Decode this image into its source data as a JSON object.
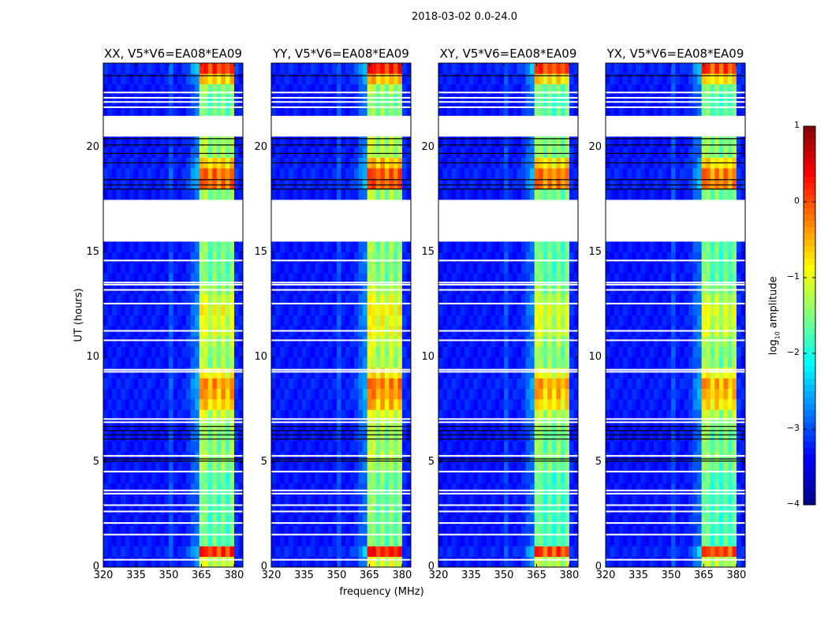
{
  "chart_data": {
    "type": "heatmap",
    "title": "2018-03-02 0.0-24.0",
    "xlabel": "frequency (MHz)",
    "ylabel": "UT (hours)",
    "xlim": [
      320,
      384
    ],
    "ylim": [
      0,
      24
    ],
    "xticks": [
      320,
      335,
      350,
      365,
      380
    ],
    "yticks": [
      0,
      5,
      10,
      15,
      20
    ],
    "colorbar": {
      "label": "log10 amplitude",
      "label_main": "log",
      "label_sub": "10",
      "label_rest": " amplitude",
      "range": [
        -4,
        1
      ],
      "ticks": [
        "1",
        "0",
        "−1",
        "−2",
        "−3",
        "−4"
      ],
      "colormap": "jet"
    },
    "freq_bin_MHz": 2,
    "time_bin_hours": 0.5,
    "column_profile": [
      -3.3,
      -3.3,
      -3.3,
      -3.3,
      -3.3,
      -3.3,
      -3.3,
      -3.3,
      -3.3,
      -3.3,
      -3.3,
      -3.3,
      -3.3,
      -3.3,
      -3.3,
      -3.0,
      -3.3,
      -3.3,
      -3.3,
      -3.2,
      -3.0,
      -2.9,
      -1.5,
      -1.5,
      -1.9,
      -1.5,
      -1.9,
      -1.5,
      -1.9,
      -1.5,
      -3.2,
      -3.3
    ],
    "band_weight": [
      0.05,
      0.05,
      0.05,
      0.05,
      0.05,
      0.05,
      0.05,
      0.05,
      0.05,
      0.05,
      0.05,
      0.05,
      0.05,
      0.05,
      0.05,
      0.05,
      0.05,
      0.05,
      0.1,
      0.1,
      0.2,
      0.3,
      1,
      1,
      1,
      1,
      1,
      1,
      1,
      1,
      0.05,
      0.05
    ],
    "row_gain": [
      0.5,
      1.8,
      0,
      0,
      0,
      0,
      0,
      0,
      0,
      0.2,
      0.3,
      0.2,
      0.2,
      0.3,
      0.5,
      1.0,
      1.2,
      1.3,
      0.8,
      0.3,
      0.3,
      0.4,
      0.6,
      0.6,
      0.7,
      0.5,
      0.3,
      0.1,
      0.1,
      0.1,
      0.1,
      null,
      null,
      null,
      null,
      0.2,
      1.5,
      1.5,
      1.0,
      0.3,
      0.3,
      null,
      null,
      0.1,
      0,
      0.2,
      1.0,
      1.8
    ],
    "flagged_lines_hours": [
      0.35,
      1.55,
      2.1,
      2.65,
      2.95,
      3.5,
      3.65,
      4.55,
      5.3,
      6.9,
      7.05,
      9.3,
      9.4,
      10.8,
      11.25,
      12.55,
      13.2,
      13.45,
      13.55,
      14.6,
      21.9,
      22.15,
      22.35,
      22.6
    ],
    "dark_lines_hours": [
      5.05,
      5.15,
      6.1,
      6.3,
      6.5,
      6.7,
      18.0,
      18.2,
      18.45,
      19.25,
      19.7,
      20.1,
      20.4,
      23.4
    ],
    "panels": [
      {
        "name": "XX",
        "title": "XX, V5*V6=EA08*EA09",
        "offset": 0
      },
      {
        "name": "YY",
        "title": "YY, V5*V6=EA08*EA09",
        "offset": 0.1
      },
      {
        "name": "XY",
        "title": "XY, V5*V6=EA08*EA09",
        "offset": -0.1
      },
      {
        "name": "YX",
        "title": "YX, V5*V6=EA08*EA09",
        "offset": -0.1
      }
    ]
  }
}
